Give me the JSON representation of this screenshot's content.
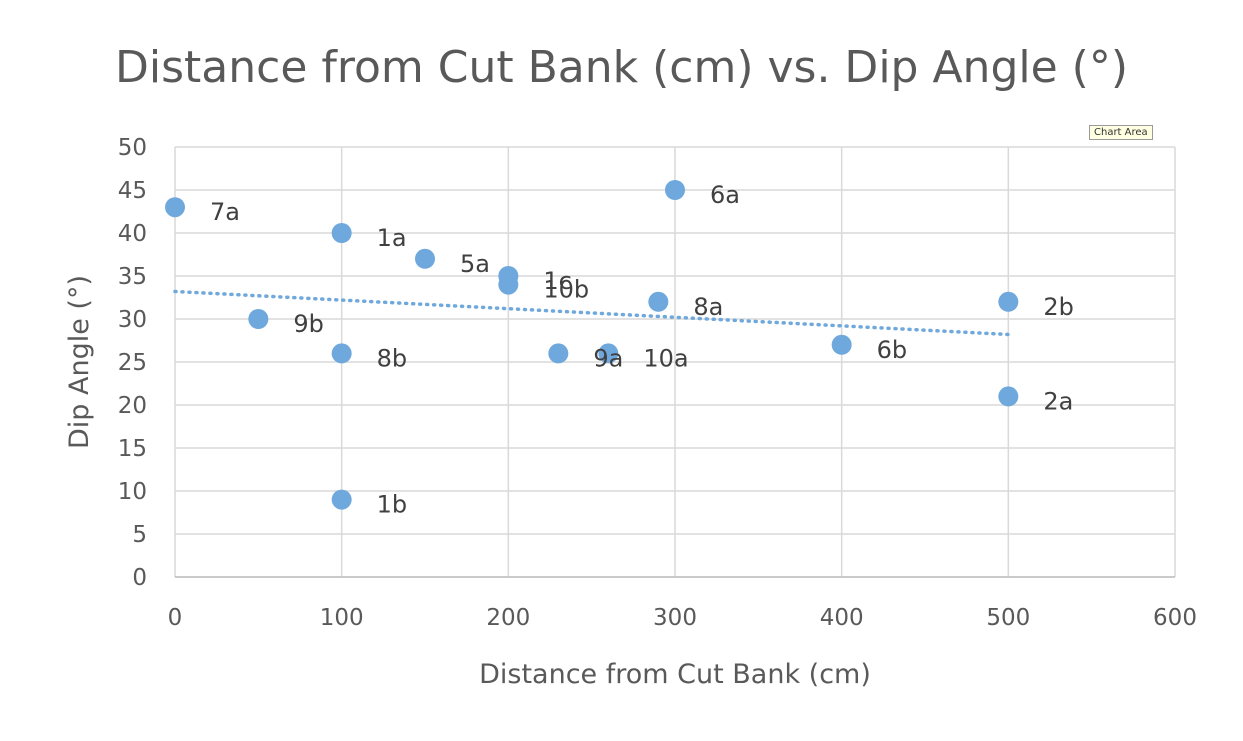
{
  "chart_data": {
    "type": "scatter",
    "title": "Distance from Cut Bank (cm) vs. Dip Angle (°)",
    "xlabel": "Distance from Cut Bank (cm)",
    "ylabel": "Dip Angle (°)",
    "xlim": [
      0,
      600
    ],
    "ylim": [
      0,
      50
    ],
    "x_ticks": [
      0,
      100,
      200,
      300,
      400,
      500,
      600
    ],
    "y_ticks": [
      0,
      5,
      10,
      15,
      20,
      25,
      30,
      35,
      40,
      45,
      50
    ],
    "grid": true,
    "marker_color": "#6FA8DC",
    "points": [
      {
        "label": "7a",
        "x": 0,
        "y": 43
      },
      {
        "label": "9b",
        "x": 50,
        "y": 30
      },
      {
        "label": "1a",
        "x": 100,
        "y": 40
      },
      {
        "label": "8b",
        "x": 100,
        "y": 26
      },
      {
        "label": "1b",
        "x": 100,
        "y": 9
      },
      {
        "label": "5a",
        "x": 150,
        "y": 37
      },
      {
        "label": "1c",
        "x": 200,
        "y": 35
      },
      {
        "label": "10b",
        "x": 200,
        "y": 34
      },
      {
        "label": "9a",
        "x": 230,
        "y": 26
      },
      {
        "label": "10a",
        "x": 260,
        "y": 26
      },
      {
        "label": "8a",
        "x": 290,
        "y": 32
      },
      {
        "label": "6a",
        "x": 300,
        "y": 45
      },
      {
        "label": "6b",
        "x": 400,
        "y": 27
      },
      {
        "label": "2b",
        "x": 500,
        "y": 32
      },
      {
        "label": "2a",
        "x": 500,
        "y": 21
      }
    ],
    "trendline": {
      "type": "linear",
      "style": "dotted",
      "x": [
        0,
        500
      ],
      "y": [
        33.2,
        28.2
      ]
    }
  },
  "ui": {
    "chart_area_tooltip": "Chart Area"
  }
}
